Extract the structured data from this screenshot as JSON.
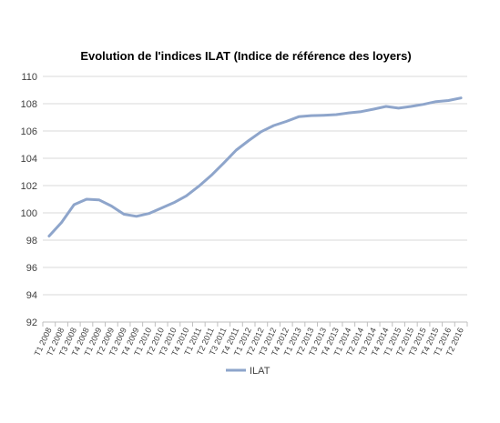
{
  "chart_data": {
    "type": "line",
    "title": "Evolution de l'indices ILAT (Indice de référence des loyers)",
    "xlabel": "",
    "ylabel": "",
    "ylim": [
      92,
      110
    ],
    "yticks": [
      92,
      94,
      96,
      98,
      100,
      102,
      104,
      106,
      108,
      110
    ],
    "grid": true,
    "legend_position": "bottom",
    "categories": [
      "T1 2008",
      "T2 2008",
      "T3 2008",
      "T4 2008",
      "T1 2009",
      "T2 2009",
      "T3 2009",
      "T4 2009",
      "T1 2010",
      "T2 2010",
      "T3 2010",
      "T4 2010",
      "T1 2011",
      "T2 2011",
      "T3 2011",
      "T4 2011",
      "T1 2012",
      "T2 2012",
      "T3 2012",
      "T4 2012",
      "T1 2013",
      "T2 2013",
      "T3 2013",
      "T4 2013",
      "T1 2014",
      "T2 2014",
      "T3 2014",
      "T4 2014",
      "T1 2015",
      "T2 2015",
      "T3 2015",
      "T4 2015",
      "T1 2016",
      "T2 2016"
    ],
    "series": [
      {
        "name": "ILAT",
        "color": "#8EA5CB",
        "values": [
          98.3,
          99.3,
          100.6,
          101.0,
          100.95,
          100.5,
          99.9,
          99.75,
          99.95,
          100.35,
          100.75,
          101.25,
          101.95,
          102.75,
          103.65,
          104.6,
          105.3,
          105.95,
          106.4,
          106.7,
          107.05,
          107.13,
          107.15,
          107.2,
          107.33,
          107.42,
          107.6,
          107.8,
          107.67,
          107.8,
          107.95,
          108.15,
          108.23,
          108.42
        ]
      }
    ]
  }
}
